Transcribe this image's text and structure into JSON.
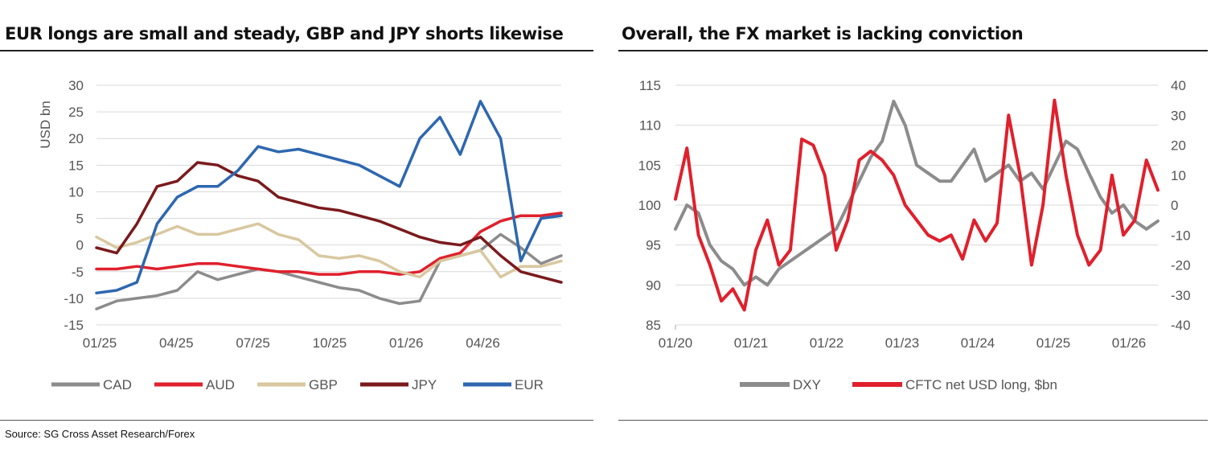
{
  "left": {
    "title": "EUR longs are small and steady, GBP and JPY shorts likewise"
  },
  "right": {
    "title": "Overall, the FX market is lacking conviction"
  },
  "source": "Source: SG Cross Asset Research/Forex",
  "chart_data": [
    {
      "type": "line",
      "title": "EUR longs are small and steady, GBP and JPY shorts likewise",
      "ylabel": "USD bn",
      "xlabel": "",
      "ylim": [
        -15,
        30
      ],
      "yticks": [
        "30",
        "25",
        "20",
        "15",
        "10",
        "5",
        "0",
        "-5",
        "-10",
        "-15"
      ],
      "xticks": [
        "01/25",
        "04/25",
        "07/25",
        "10/25",
        "01/26",
        "04/26"
      ],
      "grid": true,
      "legend_position": "bottom",
      "x": [
        0,
        0.25,
        0.5,
        0.75,
        1,
        1.25,
        1.5,
        1.75,
        2,
        2.25,
        2.5,
        2.75,
        3,
        3.25,
        3.5,
        3.75,
        4,
        4.25,
        4.5,
        4.75,
        5,
        5.25,
        5.5,
        5.75
      ],
      "series": [
        {
          "name": "CAD",
          "color": "#8c8c8c",
          "values": [
            -12,
            -10.5,
            -10,
            -9.5,
            -8.5,
            -5,
            -6.5,
            -5.5,
            -4.5,
            -5,
            -6,
            -7,
            -8,
            -8.5,
            -10,
            -11,
            -10.5,
            -3,
            -2,
            -1,
            2,
            -0.5,
            -3.5,
            -2
          ]
        },
        {
          "name": "AUD",
          "color": "#e0202c",
          "values": [
            -4.5,
            -4.5,
            -4,
            -4.5,
            -4,
            -3.5,
            -3.5,
            -4,
            -4.5,
            -5,
            -5,
            -5.5,
            -5.5,
            -5,
            -5,
            -5.5,
            -5,
            -2.5,
            -1.5,
            2.5,
            4.5,
            5.5,
            5.5,
            6
          ]
        },
        {
          "name": "GBP",
          "color": "#d9c8a0",
          "values": [
            1.5,
            -0.5,
            0.5,
            2,
            3.5,
            2,
            2,
            3,
            4,
            2,
            1,
            -2,
            -2.5,
            -2,
            -3,
            -5,
            -6,
            -3,
            -2,
            -1,
            -6,
            -4,
            -4,
            -3
          ]
        },
        {
          "name": "JPY",
          "color": "#7a1a1c",
          "values": [
            -0.5,
            -1.5,
            4,
            11,
            12,
            15.5,
            15,
            13,
            12,
            9,
            8,
            7,
            6.5,
            5.5,
            4.5,
            3,
            1.5,
            0.5,
            0,
            1.5,
            -2,
            -5,
            -6,
            -7
          ]
        },
        {
          "name": "EUR",
          "color": "#2e67b0",
          "values": [
            -9,
            -8.5,
            -7,
            4,
            9,
            11,
            11,
            14,
            18.5,
            17.5,
            18,
            17,
            16,
            15,
            13,
            11,
            20,
            24,
            17,
            27,
            20,
            -3,
            5,
            5.5
          ]
        }
      ]
    },
    {
      "type": "line",
      "title": "Overall, the FX market is lacking conviction",
      "xlabel": "",
      "ylim_left": [
        85,
        115
      ],
      "ylim_right": [
        -40,
        40
      ],
      "yticks_left": [
        "115",
        "110",
        "105",
        "100",
        "95",
        "90",
        "85"
      ],
      "yticks_right": [
        "40",
        "30",
        "20",
        "10",
        "0",
        "-10",
        "-20",
        "-30",
        "-40"
      ],
      "xticks": [
        "01/20",
        "01/21",
        "01/22",
        "01/23",
        "01/24",
        "01/25",
        "01/26"
      ],
      "grid": true,
      "legend_position": "bottom",
      "x": [
        0,
        0.15,
        0.3,
        0.45,
        0.6,
        0.75,
        0.9,
        1.05,
        1.2,
        1.35,
        1.5,
        1.65,
        1.8,
        1.95,
        2.1,
        2.25,
        2.4,
        2.55,
        2.7,
        2.85,
        3.0,
        3.15,
        3.3,
        3.45,
        3.6,
        3.75,
        3.9,
        4.05,
        4.2,
        4.35,
        4.5,
        4.65,
        4.8,
        4.95,
        5.1,
        5.25,
        5.4,
        5.55,
        5.7,
        5.85,
        6.0,
        6.15,
        6.3
      ],
      "series": [
        {
          "name": "DXY",
          "axis": "left",
          "color": "#8c8c8c",
          "values": [
            97,
            100,
            99,
            95,
            93,
            92,
            90,
            91,
            90,
            92,
            93,
            94,
            95,
            96,
            97,
            100,
            103,
            106,
            108,
            113,
            110,
            105,
            104,
            103,
            103,
            105,
            107,
            103,
            104,
            105,
            103,
            104,
            102,
            105,
            108,
            107,
            104,
            101,
            99,
            100,
            98,
            97,
            98
          ]
        },
        {
          "name": "CFTC net USD long, $bn",
          "axis": "right",
          "color": "#e0202c",
          "values": [
            2,
            19,
            -10,
            -20,
            -32,
            -28,
            -35,
            -15,
            -5,
            -20,
            -15,
            22,
            20,
            10,
            -15,
            -5,
            15,
            18,
            15,
            10,
            0,
            -5,
            -10,
            -12,
            -10,
            -18,
            -5,
            -12,
            -6,
            30,
            10,
            -20,
            0,
            35,
            10,
            -10,
            -20,
            -15,
            10,
            -10,
            -5,
            15,
            5
          ]
        }
      ]
    }
  ]
}
